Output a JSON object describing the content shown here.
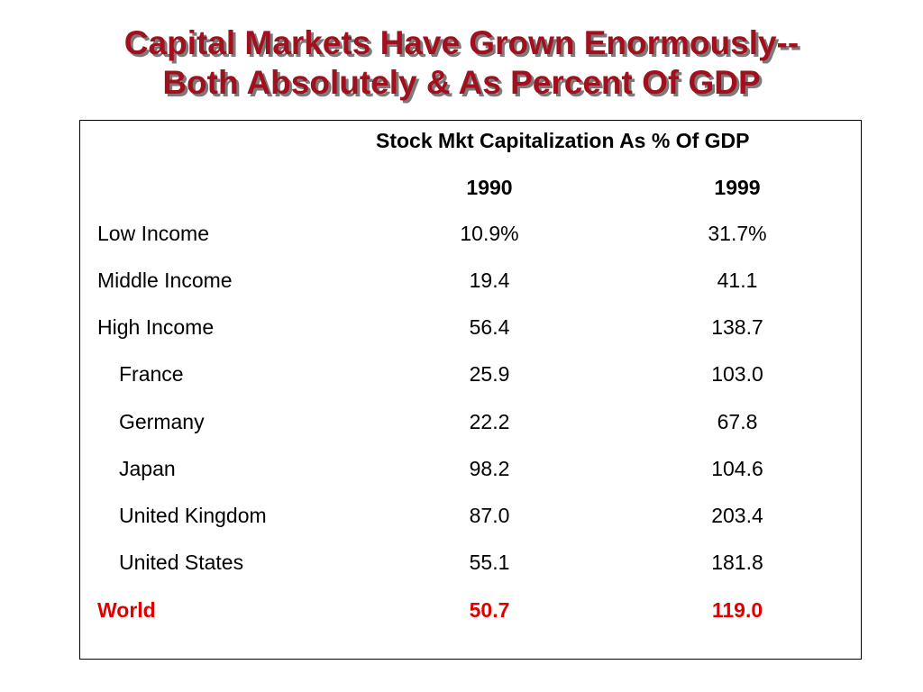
{
  "title": {
    "line1": "Capital Markets Have Grown Enormously--",
    "line2": "Both Absolutely & As Percent Of GDP"
  },
  "table": {
    "group_header": "Stock Mkt Capitalization As % Of GDP",
    "year_headers": [
      "1990",
      "1999"
    ],
    "rows": [
      {
        "label": "Low Income",
        "v1990": "10.9%",
        "v1999": "31.7%"
      },
      {
        "label": "Middle Income",
        "v1990": "19.4",
        "v1999": "41.1"
      },
      {
        "label": "High Income",
        "v1990": "56.4",
        "v1999": "138.7"
      },
      {
        "label": "France",
        "v1990": "25.9",
        "v1999": "103.0"
      },
      {
        "label": "Germany",
        "v1990": "22.2",
        "v1999": "67.8"
      },
      {
        "label": "Japan",
        "v1990": "98.2",
        "v1999": "104.6"
      },
      {
        "label": "United Kingdom",
        "v1990": "87.0",
        "v1999": "203.4"
      },
      {
        "label": "United States",
        "v1990": "55.1",
        "v1999": "181.8"
      },
      {
        "label": "World",
        "v1990": "50.7",
        "v1999": "119.0"
      }
    ]
  },
  "colors": {
    "title": "#a3101d",
    "world_row": "#e00000"
  }
}
